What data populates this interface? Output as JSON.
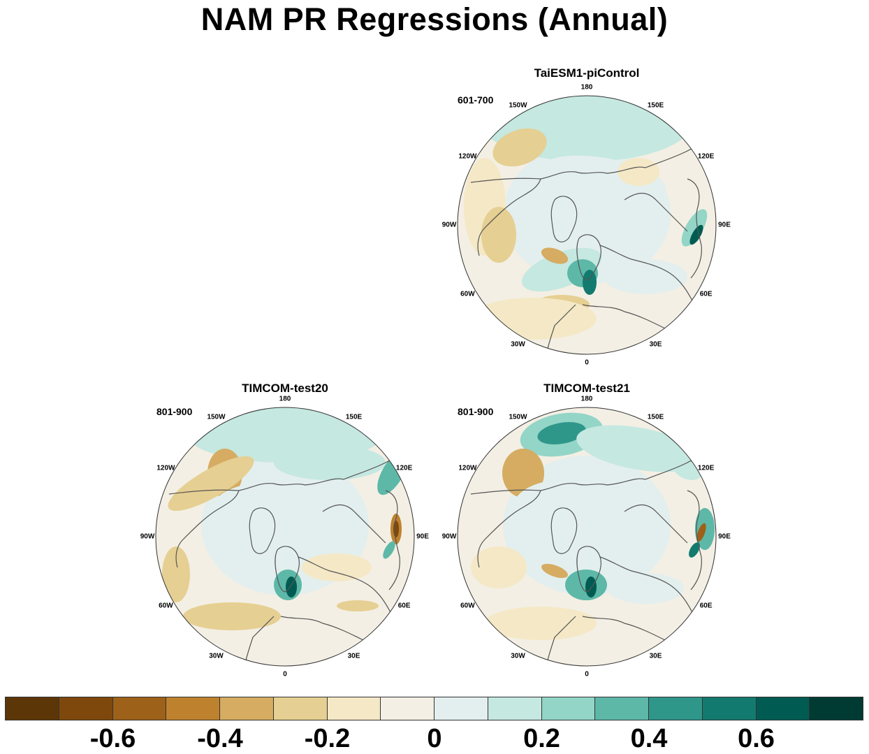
{
  "title": "NAM PR Regressions (Annual)",
  "panels": [
    {
      "id": "p1",
      "name": "TaiESM1-piControl",
      "period": "601-700"
    },
    {
      "id": "p2",
      "name": "TIMCOM-test20",
      "period": "801-900"
    },
    {
      "id": "p3",
      "name": "TIMCOM-test21",
      "period": "801-900"
    }
  ],
  "longitude_labels": [
    "180",
    "150E",
    "120E",
    "90E",
    "60E",
    "30E",
    "0",
    "30W",
    "60W",
    "90W",
    "120W",
    "150W"
  ],
  "colorbar": {
    "colors": [
      "#5c3607",
      "#7e480d",
      "#9e6119",
      "#be822f",
      "#d5ac62",
      "#e6cf92",
      "#f4e8c6",
      "#f3efe4",
      "#e3efee",
      "#c5e8e1",
      "#93d5c7",
      "#5db8a8",
      "#2f968a",
      "#137a6f",
      "#005c52",
      "#003b33"
    ],
    "labels": [
      "-0.6",
      "-0.4",
      "-0.2",
      "0",
      "0.2",
      "0.4",
      "0.6"
    ]
  }
}
